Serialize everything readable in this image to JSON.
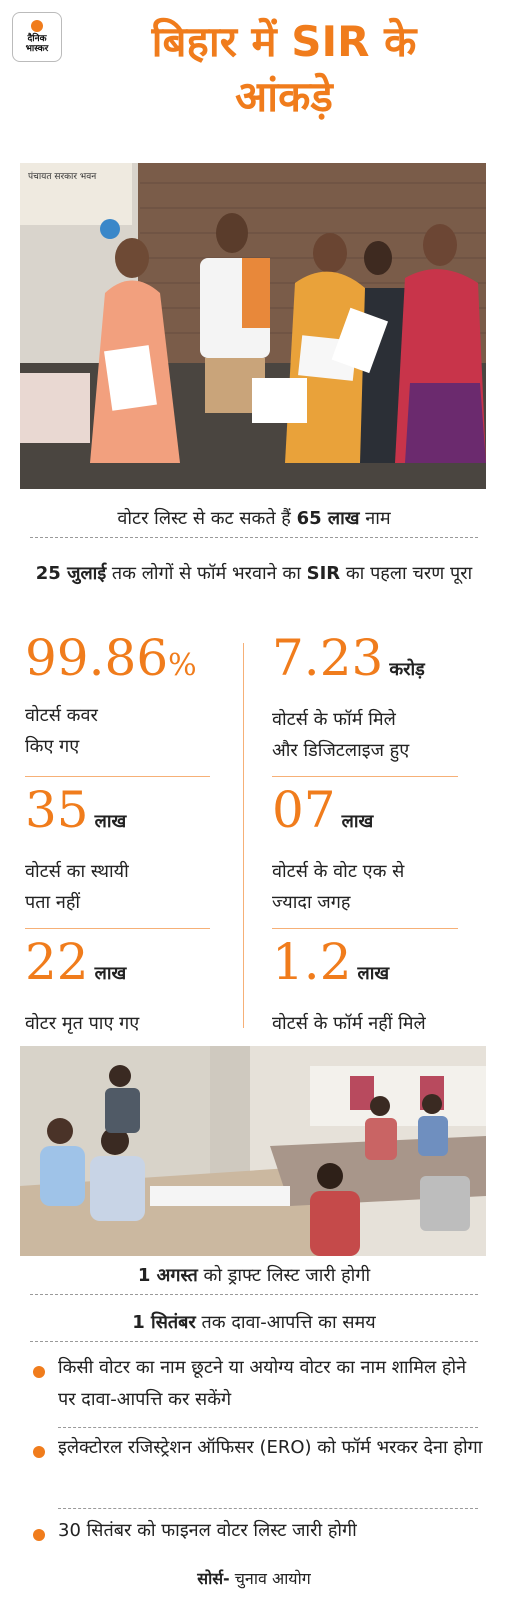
{
  "header": {
    "logo_line1": "दैनिक",
    "logo_line2": "भास्कर",
    "title_line1": "बिहार में SIR के",
    "title_line2": "आंकड़े"
  },
  "photo1": {
    "sign_text": "पंचायत सरकार भवन"
  },
  "headline": {
    "pre": "वोटर लिस्ट से कट सकते हैं ",
    "bold": "65 लाख",
    "post": " नाम"
  },
  "subhead": {
    "bold1": "25 जुलाई",
    "mid": " तक लोगों से फॉर्म भरवाने का ",
    "bold2": "SIR",
    "post": " का पहला चरण पूरा"
  },
  "stats": [
    {
      "number": "99.86",
      "unit": "%",
      "line1": "वोटर्स कवर",
      "line2": "किए गए"
    },
    {
      "number": "7.23",
      "unit": "करोड़",
      "line1": "वोटर्स के फॉर्म मिले",
      "line2": "और डिजिटलाइज हुए"
    },
    {
      "number": "35",
      "unit": "लाख",
      "line1": "वोटर्स का स्थायी",
      "line2": "पता नहीं"
    },
    {
      "number": "07",
      "unit": "लाख",
      "line1": "वोटर्स के वोट एक से",
      "line2": "ज्यादा जगह"
    },
    {
      "number": "22",
      "unit": "लाख",
      "line1": "वोटर मृत पाए गए",
      "line2": ""
    },
    {
      "number": "1.2",
      "unit": "लाख",
      "line1": "वोटर्स के फॉर्म नहीं मिले",
      "line2": ""
    }
  ],
  "dates": [
    {
      "bold": "1 अगस्त",
      "text": " को ड्राफ्ट लिस्ट जारी होगी"
    },
    {
      "bold": "1 सितंबर",
      "text": " तक दावा-आपत्ति का समय"
    }
  ],
  "bullets": [
    "किसी वोटर का नाम छूटने या अयोग्य वोटर का नाम शामिल होने पर दावा-आपत्ति कर सकेंगे",
    "इलेक्टोरल रजिस्ट्रेशन ऑफिसर (ERO) को फॉर्म भरकर देना होगा",
    "30 सितंबर को फाइनल वोटर लिस्ट जारी होगी"
  ],
  "source": {
    "label": "सोर्स-",
    "text": " चुनाव आयोग"
  },
  "colors": {
    "accent": "#f07c1c",
    "text": "#222222"
  }
}
